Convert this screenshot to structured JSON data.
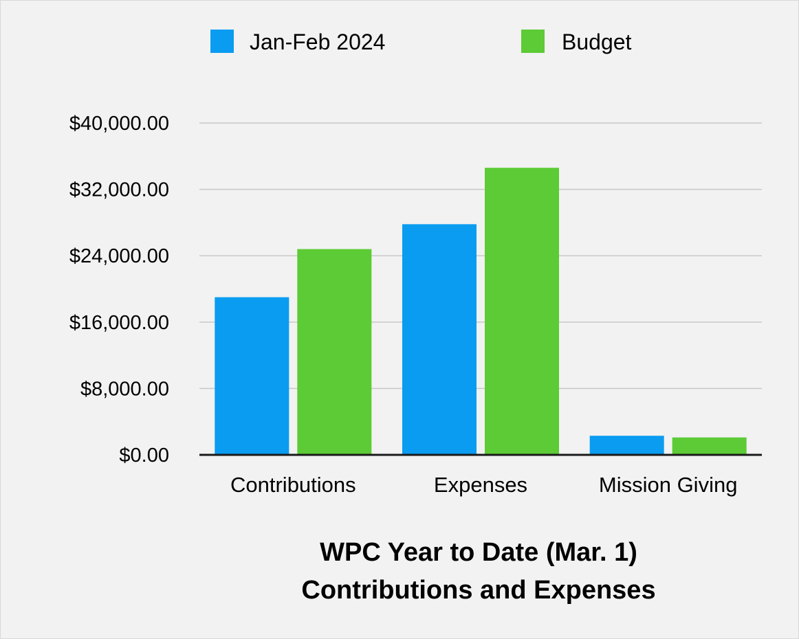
{
  "chart_data": {
    "type": "bar",
    "title": [
      "WPC Year to Date (Mar. 1)",
      "Contributions and Expenses"
    ],
    "categories": [
      "Contributions",
      "Expenses",
      "Mission Giving"
    ],
    "series": [
      {
        "name": "Jan-Feb 2024",
        "color": "#0a9cf0",
        "values": [
          19000,
          27800,
          2300
        ]
      },
      {
        "name": "Budget",
        "color": "#5ccb35",
        "values": [
          24800,
          34600,
          2100
        ]
      }
    ],
    "ylim": [
      0,
      40000
    ],
    "y_ticks": [
      0,
      8000,
      16000,
      24000,
      32000,
      40000
    ],
    "y_tick_labels": [
      "$0.00",
      "$8,000.00",
      "$16,000.00",
      "$24,000.00",
      "$32,000.00",
      "$40,000.00"
    ],
    "grid": true,
    "legend_position": "top"
  }
}
